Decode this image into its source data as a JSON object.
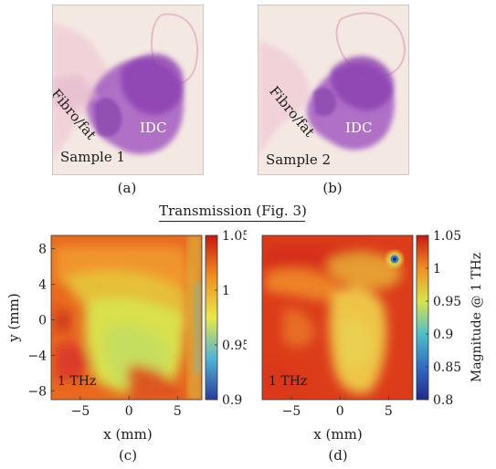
{
  "panels_top": [
    {
      "id": "a",
      "caption": "(a)",
      "sample_label": "Sample 1",
      "tissue_label": "Fibro/fat",
      "tumor_label": "IDC"
    },
    {
      "id": "b",
      "caption": "(b)",
      "sample_label": "Sample 2",
      "tissue_label": "Fibro/fat",
      "tumor_label": "IDC"
    }
  ],
  "section_title": "Transmission (Fig. 3)",
  "colors": {
    "stain_background": "#f3e4df",
    "stain_tumor": "#8d44b6",
    "stain_fibro": "#e6a3c9",
    "heatmap_low": "#2c3b9a",
    "heatmap_mid": "#e8e84a",
    "heatmap_high": "#d81e10"
  },
  "chart_data": [
    {
      "type": "heatmap",
      "panel": "(c)",
      "annotation": "1 THz",
      "xlabel": "x (mm)",
      "ylabel": "y (mm)",
      "x_ticks": [
        "−5",
        "0",
        "5"
      ],
      "y_ticks": [
        "8",
        "4",
        "0",
        "−4",
        "−8"
      ],
      "xlim": [
        -8,
        7.5
      ],
      "ylim": [
        -9,
        9.5
      ],
      "colorbar": {
        "min": 0.9,
        "max": 1.05,
        "ticks": [
          "1.05",
          "1",
          "0.95",
          "0.9"
        ]
      }
    },
    {
      "type": "heatmap",
      "panel": "(d)",
      "annotation": "1 THz",
      "xlabel": "x (mm)",
      "x_ticks": [
        "−5",
        "0",
        "5"
      ],
      "xlim": [
        -8,
        7.5
      ],
      "ylim": [
        -9,
        9.5
      ],
      "colorbar": {
        "min": 0.8,
        "max": 1.05,
        "ticks": [
          "1.05",
          "1",
          "0.95",
          "0.9",
          "0.85",
          "0.8"
        ],
        "label": "Magnitude @ 1 THz"
      }
    }
  ]
}
